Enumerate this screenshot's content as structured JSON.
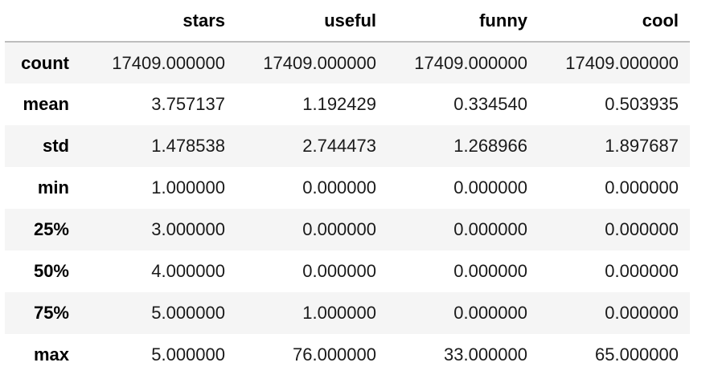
{
  "table": {
    "columns": [
      "",
      "stars",
      "useful",
      "funny",
      "cool"
    ],
    "rows": [
      {
        "index": "count",
        "values": [
          "17409.000000",
          "17409.000000",
          "17409.000000",
          "17409.000000"
        ]
      },
      {
        "index": "mean",
        "values": [
          "3.757137",
          "1.192429",
          "0.334540",
          "0.503935"
        ]
      },
      {
        "index": "std",
        "values": [
          "1.478538",
          "2.744473",
          "1.268966",
          "1.897687"
        ]
      },
      {
        "index": "min",
        "values": [
          "1.000000",
          "0.000000",
          "0.000000",
          "0.000000"
        ]
      },
      {
        "index": "25%",
        "values": [
          "3.000000",
          "0.000000",
          "0.000000",
          "0.000000"
        ]
      },
      {
        "index": "50%",
        "values": [
          "4.000000",
          "0.000000",
          "0.000000",
          "0.000000"
        ]
      },
      {
        "index": "75%",
        "values": [
          "5.000000",
          "1.000000",
          "0.000000",
          "0.000000"
        ]
      },
      {
        "index": "max",
        "values": [
          "5.000000",
          "76.000000",
          "33.000000",
          "65.000000"
        ]
      }
    ]
  }
}
